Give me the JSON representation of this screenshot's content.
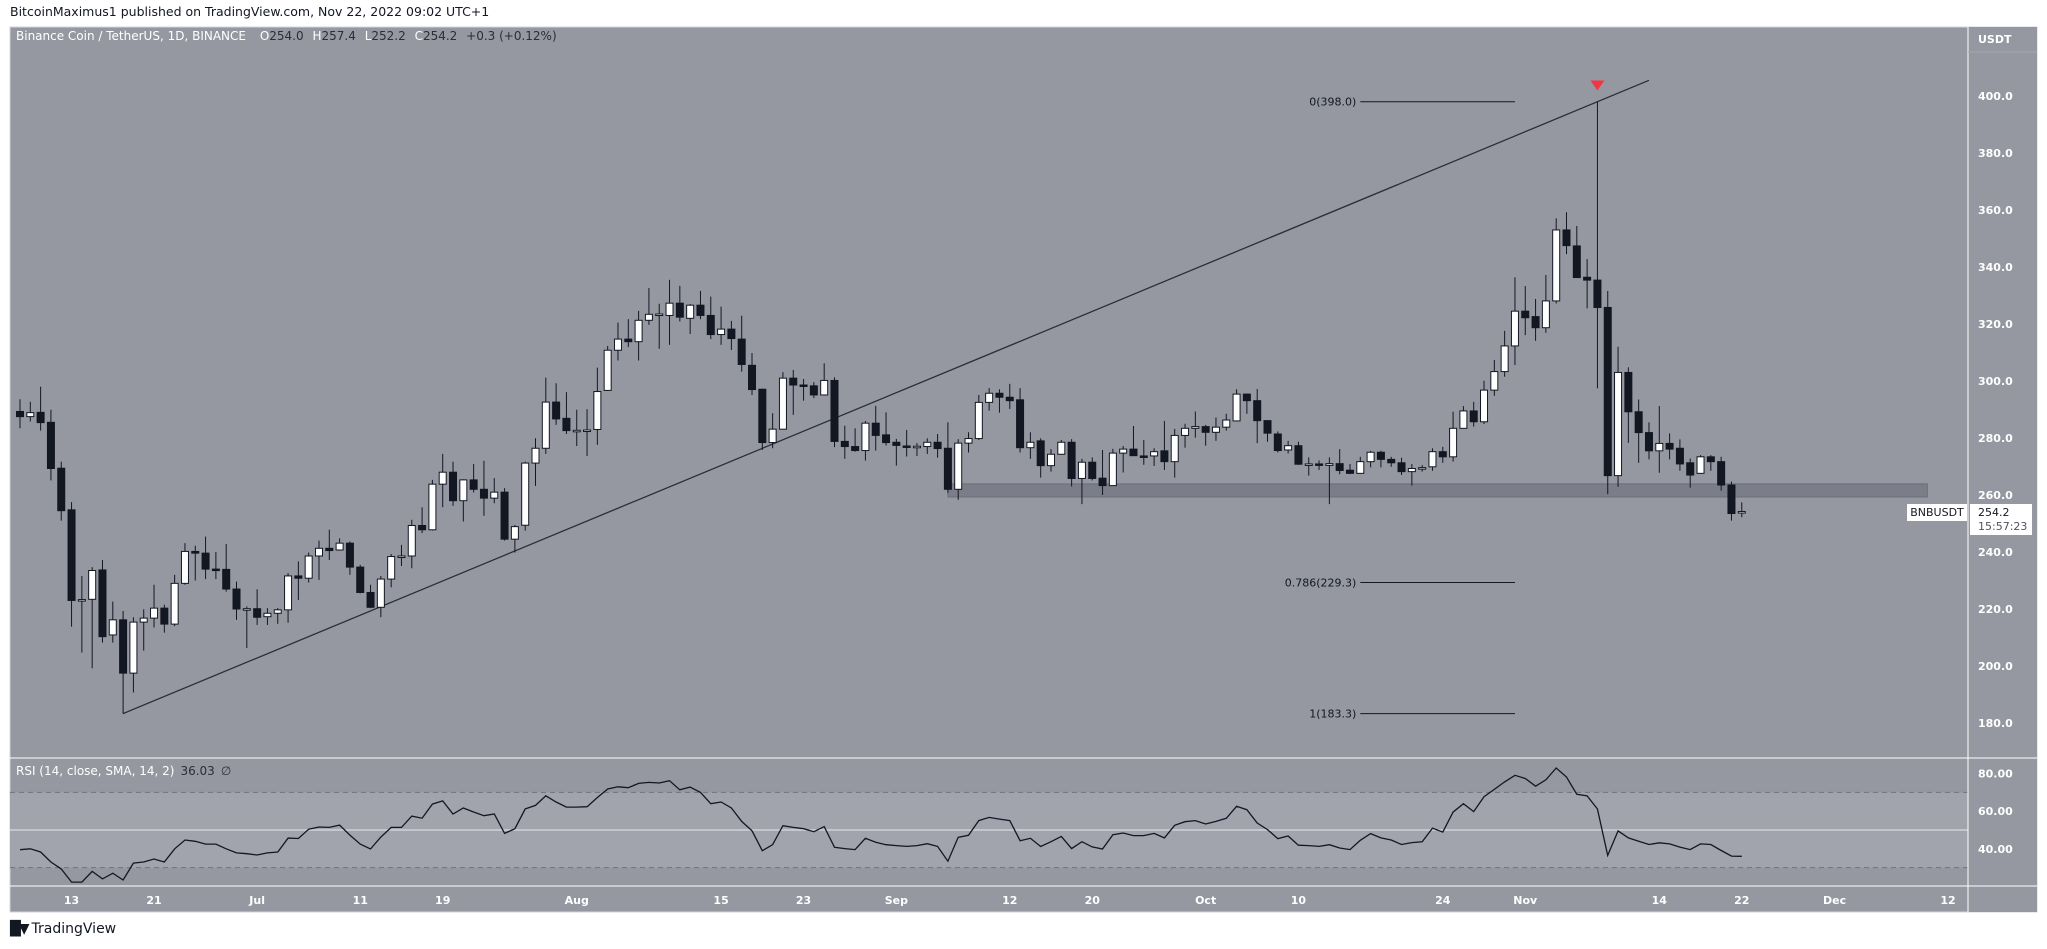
{
  "attribution": "BitcoinMaximus1 published on TradingView.com, Nov 22, 2022 09:02 UTC+1",
  "legend": {
    "symbol": "Binance Coin / TetherUS, 1D, BINANCE",
    "o_label": "O",
    "o": "254.0",
    "h_label": "H",
    "h": "257.4",
    "l_label": "L",
    "l": "252.2",
    "c_label": "C",
    "c": "254.2",
    "change": "+0.3 (+0.12%)"
  },
  "rsi_legend": {
    "label": "RSI (14, close, SMA, 14, 2)",
    "value": "36.03",
    "icon": "∅"
  },
  "price_axis_unit": "USDT",
  "symbol_tag": "BNBUSDT",
  "last_price": "254.2",
  "countdown": "15:57:23",
  "footer": {
    "logo": "17",
    "brand": "TradingView"
  },
  "colors": {
    "background": "#9598a1",
    "rsi_band": "#a1a4ac",
    "bear": "#131722",
    "bull": "#ffffff",
    "marker": "#f23645",
    "line": "#2a2e39"
  },
  "chart_data": {
    "type": "candlestick",
    "title": "Binance Coin / TetherUS, 1D, BINANCE",
    "start_date": "2022-06-08",
    "ylim": [
      170,
      415
    ],
    "y_ticks": [
      "180.0",
      "200.0",
      "220.0",
      "240.0",
      "260.0",
      "280.0",
      "300.0",
      "320.0",
      "340.0",
      "360.0",
      "380.0",
      "400.0"
    ],
    "x_ticks": [
      {
        "label": "13",
        "date": "2022-06-13"
      },
      {
        "label": "21",
        "date": "2022-06-21"
      },
      {
        "label": "Jul",
        "date": "2022-07-01"
      },
      {
        "label": "11",
        "date": "2022-07-11"
      },
      {
        "label": "19",
        "date": "2022-07-19"
      },
      {
        "label": "Aug",
        "date": "2022-08-01"
      },
      {
        "label": "15",
        "date": "2022-08-15"
      },
      {
        "label": "23",
        "date": "2022-08-23"
      },
      {
        "label": "Sep",
        "date": "2022-09-01"
      },
      {
        "label": "12",
        "date": "2022-09-12"
      },
      {
        "label": "20",
        "date": "2022-09-20"
      },
      {
        "label": "Oct",
        "date": "2022-10-01"
      },
      {
        "label": "10",
        "date": "2022-10-10"
      },
      {
        "label": "24",
        "date": "2022-10-24"
      },
      {
        "label": "Nov",
        "date": "2022-11-01"
      },
      {
        "label": "14",
        "date": "2022-11-14"
      },
      {
        "label": "22",
        "date": "2022-11-22"
      },
      {
        "label": "Dec",
        "date": "2022-12-01"
      },
      {
        "label": "12",
        "date": "2022-12-12"
      }
    ],
    "ohlc": [
      [
        289.3,
        293.6,
        283.4,
        287.5
      ],
      [
        287.5,
        292.7,
        285.8,
        288.9
      ],
      [
        289.0,
        298.0,
        282.6,
        285.4
      ],
      [
        285.5,
        289.9,
        265.1,
        269.3
      ],
      [
        269.4,
        271.7,
        251.0,
        254.5
      ],
      [
        254.8,
        257.5,
        213.8,
        223.0
      ],
      [
        223.2,
        231.6,
        204.7,
        223.3
      ],
      [
        223.4,
        234.7,
        199.2,
        233.5
      ],
      [
        233.7,
        237.2,
        208.2,
        210.3
      ],
      [
        210.9,
        222.6,
        208.2,
        216.2
      ],
      [
        216.2,
        219.3,
        183.3,
        197.5
      ],
      [
        197.5,
        217.1,
        190.7,
        215.4
      ],
      [
        215.4,
        219.9,
        205.4,
        216.8
      ],
      [
        216.8,
        228.5,
        213.5,
        220.3
      ],
      [
        220.3,
        221.5,
        211.7,
        214.7
      ],
      [
        214.7,
        232.0,
        214.0,
        229.0
      ],
      [
        229.0,
        243.1,
        228.5,
        240.2
      ],
      [
        240.2,
        242.2,
        230.0,
        239.6
      ],
      [
        239.6,
        245.4,
        230.5,
        234.0
      ],
      [
        234.0,
        240.0,
        230.5,
        233.9
      ],
      [
        233.9,
        242.8,
        226.1,
        227.0
      ],
      [
        227.0,
        229.6,
        216.2,
        220.0
      ],
      [
        220.0,
        220.9,
        206.3,
        220.1
      ],
      [
        220.1,
        226.9,
        214.4,
        217.1
      ],
      [
        217.3,
        220.3,
        214.4,
        218.5
      ],
      [
        218.5,
        220.3,
        214.8,
        219.7
      ],
      [
        219.7,
        232.6,
        215.2,
        231.6
      ],
      [
        231.6,
        236.7,
        223.2,
        230.8
      ],
      [
        230.8,
        239.8,
        229.3,
        238.6
      ],
      [
        238.6,
        244.0,
        230.2,
        241.3
      ],
      [
        241.3,
        247.8,
        237.2,
        240.5
      ],
      [
        240.7,
        244.8,
        240.5,
        243.1
      ],
      [
        243.1,
        243.7,
        232.0,
        234.7
      ],
      [
        234.7,
        235.5,
        225.5,
        225.8
      ],
      [
        225.8,
        228.5,
        220.3,
        220.6
      ],
      [
        220.6,
        231.6,
        217.1,
        230.5
      ],
      [
        230.5,
        239.3,
        227.6,
        238.4
      ],
      [
        238.4,
        242.5,
        235.1,
        238.6
      ],
      [
        238.6,
        251.3,
        234.3,
        249.3
      ],
      [
        249.3,
        255.7,
        246.6,
        247.8
      ],
      [
        247.8,
        265.3,
        247.5,
        263.8
      ],
      [
        263.8,
        274.4,
        255.7,
        268.0
      ],
      [
        268.0,
        271.7,
        256.2,
        258.0
      ],
      [
        258.0,
        265.5,
        250.7,
        265.3
      ],
      [
        265.3,
        270.9,
        260.9,
        262.0
      ],
      [
        262.0,
        272.0,
        252.7,
        258.9
      ],
      [
        258.9,
        265.9,
        257.1,
        261.0
      ],
      [
        261.0,
        262.4,
        244.0,
        244.5
      ],
      [
        244.5,
        249.5,
        239.8,
        248.9
      ],
      [
        249.4,
        271.7,
        247.5,
        271.2
      ],
      [
        271.2,
        279.9,
        263.2,
        276.4
      ],
      [
        276.4,
        301.2,
        274.4,
        292.6
      ],
      [
        292.6,
        299.2,
        284.6,
        286.7
      ],
      [
        286.9,
        296.1,
        281.4,
        282.6
      ],
      [
        282.6,
        289.9,
        277.2,
        282.7
      ],
      [
        282.7,
        290.1,
        273.7,
        282.8
      ],
      [
        283.0,
        304.7,
        277.6,
        296.3
      ],
      [
        296.7,
        312.3,
        296.5,
        310.8
      ],
      [
        310.8,
        320.5,
        307.2,
        314.7
      ],
      [
        314.7,
        321.7,
        311.9,
        313.8
      ],
      [
        313.8,
        324.6,
        307.2,
        321.3
      ],
      [
        321.3,
        332.6,
        319.7,
        323.4
      ],
      [
        323.4,
        327.1,
        311.3,
        323.5
      ],
      [
        323.0,
        335.5,
        312.7,
        327.3
      ],
      [
        327.3,
        333.4,
        320.9,
        322.4
      ],
      [
        322.0,
        327.0,
        316.5,
        326.6
      ],
      [
        326.6,
        331.6,
        321.7,
        323.0
      ],
      [
        323.0,
        329.6,
        314.7,
        316.3
      ],
      [
        316.3,
        326.1,
        312.7,
        318.2
      ],
      [
        318.2,
        321.1,
        310.9,
        314.9
      ],
      [
        314.7,
        322.9,
        303.3,
        305.8
      ],
      [
        305.5,
        309.8,
        295.1,
        297.0
      ],
      [
        297.1,
        297.3,
        275.8,
        278.4
      ],
      [
        278.4,
        288.7,
        276.4,
        283.1
      ],
      [
        283.1,
        303.1,
        283.0,
        301.0
      ],
      [
        301.0,
        303.9,
        288.1,
        298.6
      ],
      [
        298.6,
        300.7,
        293.1,
        298.1
      ],
      [
        298.3,
        299.6,
        294.0,
        295.1
      ],
      [
        295.1,
        306.2,
        295.0,
        300.2
      ],
      [
        300.2,
        301.3,
        276.8,
        278.8
      ],
      [
        278.8,
        284.3,
        272.7,
        277.0
      ],
      [
        277.0,
        283.4,
        275.2,
        275.6
      ],
      [
        275.6,
        286.0,
        272.1,
        285.2
      ],
      [
        285.2,
        291.3,
        275.6,
        280.9
      ],
      [
        281.1,
        289.0,
        277.4,
        278.4
      ],
      [
        278.5,
        279.7,
        270.3,
        277.4
      ],
      [
        277.2,
        282.8,
        273.5,
        277.0
      ],
      [
        277.0,
        278.2,
        273.7,
        277.1
      ],
      [
        277.0,
        279.9,
        274.4,
        278.5
      ],
      [
        278.5,
        281.4,
        273.1,
        276.3
      ],
      [
        276.4,
        285.5,
        260.8,
        262.0
      ],
      [
        262.0,
        279.6,
        258.3,
        278.2
      ],
      [
        278.2,
        282.0,
        274.9,
        279.8
      ],
      [
        279.8,
        295.1,
        279.3,
        292.5
      ],
      [
        292.5,
        297.5,
        289.6,
        295.7
      ],
      [
        295.7,
        297.1,
        288.9,
        294.3
      ],
      [
        294.3,
        299.0,
        290.2,
        293.1
      ],
      [
        293.4,
        297.5,
        274.9,
        276.6
      ],
      [
        276.6,
        282.0,
        272.7,
        278.5
      ],
      [
        279.0,
        279.9,
        266.1,
        270.3
      ],
      [
        270.3,
        276.1,
        268.2,
        274.3
      ],
      [
        274.3,
        279.3,
        274.1,
        278.5
      ],
      [
        278.5,
        279.6,
        263.0,
        265.8
      ],
      [
        265.8,
        272.7,
        256.8,
        271.5
      ],
      [
        271.5,
        273.2,
        265.1,
        265.8
      ],
      [
        265.9,
        275.8,
        260.0,
        263.3
      ],
      [
        263.3,
        276.2,
        263.2,
        274.7
      ],
      [
        274.7,
        277.2,
        267.9,
        276.1
      ],
      [
        276.1,
        284.2,
        273.8,
        273.8
      ],
      [
        273.7,
        279.3,
        270.6,
        273.6
      ],
      [
        273.7,
        276.4,
        270.2,
        275.2
      ],
      [
        275.5,
        286.0,
        268.8,
        271.7
      ],
      [
        271.7,
        283.2,
        266.1,
        280.9
      ],
      [
        280.9,
        285.0,
        276.6,
        283.4
      ],
      [
        283.4,
        289.3,
        280.1,
        284.0
      ],
      [
        284.0,
        284.6,
        277.3,
        282.0
      ],
      [
        282.0,
        287.2,
        279.0,
        283.8
      ],
      [
        283.8,
        288.5,
        282.6,
        286.3
      ],
      [
        286.0,
        297.1,
        285.8,
        295.4
      ],
      [
        295.4,
        295.5,
        288.5,
        293.1
      ],
      [
        293.1,
        297.2,
        278.2,
        286.1
      ],
      [
        286.1,
        286.2,
        278.7,
        281.7
      ],
      [
        281.4,
        282.3,
        274.9,
        275.6
      ],
      [
        275.8,
        279.0,
        274.6,
        277.3
      ],
      [
        277.3,
        278.7,
        270.6,
        270.8
      ],
      [
        270.8,
        273.2,
        266.8,
        270.9
      ],
      [
        270.9,
        272.1,
        268.8,
        270.6
      ],
      [
        270.4,
        273.2,
        256.8,
        271.0
      ],
      [
        271.0,
        276.1,
        267.3,
        268.6
      ],
      [
        268.7,
        270.9,
        267.3,
        267.6
      ],
      [
        267.6,
        273.4,
        267.5,
        271.7
      ],
      [
        271.7,
        275.5,
        269.7,
        275.0
      ],
      [
        275.0,
        275.5,
        269.7,
        272.5
      ],
      [
        272.5,
        273.4,
        269.9,
        271.3
      ],
      [
        271.3,
        273.1,
        267.0,
        268.2
      ],
      [
        268.2,
        270.9,
        263.3,
        269.3
      ],
      [
        269.3,
        270.5,
        268.2,
        269.6
      ],
      [
        269.9,
        276.4,
        268.5,
        275.2
      ],
      [
        275.2,
        276.9,
        271.3,
        273.4
      ],
      [
        273.4,
        289.2,
        271.7,
        283.4
      ],
      [
        283.4,
        291.2,
        283.3,
        289.5
      ],
      [
        289.5,
        292.7,
        284.0,
        285.7
      ],
      [
        285.7,
        300.1,
        284.9,
        296.8
      ],
      [
        296.8,
        307.4,
        294.8,
        303.3
      ],
      [
        303.3,
        317.6,
        301.5,
        312.3
      ],
      [
        312.3,
        336.4,
        305.6,
        324.5
      ],
      [
        324.5,
        333.3,
        316.1,
        322.2
      ],
      [
        322.6,
        328.8,
        314.1,
        318.7
      ],
      [
        318.7,
        337.2,
        316.9,
        328.1
      ],
      [
        328.1,
        357.1,
        327.2,
        353.0
      ],
      [
        353.0,
        359.2,
        344.5,
        347.5
      ],
      [
        347.4,
        354.4,
        336.2,
        336.3
      ],
      [
        336.4,
        342.8,
        325.5,
        335.4
      ],
      [
        335.4,
        398.0,
        297.4,
        325.8
      ],
      [
        325.8,
        331.6,
        260.3,
        266.8
      ],
      [
        266.8,
        312.0,
        262.9,
        303.0
      ],
      [
        303.0,
        304.8,
        278.3,
        289.2
      ],
      [
        289.2,
        293.5,
        271.3,
        281.9
      ],
      [
        281.9,
        285.5,
        272.5,
        275.5
      ],
      [
        275.5,
        291.2,
        267.8,
        278.1
      ],
      [
        278.1,
        281.6,
        272.5,
        276.1
      ],
      [
        276.4,
        279.5,
        268.5,
        270.9
      ],
      [
        271.3,
        272.8,
        262.6,
        267.0
      ],
      [
        267.6,
        274.0,
        267.5,
        273.4
      ],
      [
        273.4,
        274.0,
        268.5,
        271.7
      ],
      [
        271.7,
        273.4,
        261.5,
        263.5
      ],
      [
        263.5,
        264.7,
        251.0,
        253.5
      ],
      [
        254.0,
        257.4,
        252.2,
        254.2
      ]
    ],
    "trendline": {
      "from": {
        "date": "2022-06-18",
        "price": 183.3
      },
      "to": {
        "date": "2022-11-13",
        "price": 405.5
      }
    },
    "support_zone": {
      "from_date": "2022-09-06",
      "to_date": "2022-12-10",
      "low": 259.3,
      "high": 263.9
    },
    "fib_levels": [
      {
        "label": "0(398.0)",
        "price": 398.0
      },
      {
        "label": "0.786(229.3)",
        "price": 229.3
      },
      {
        "label": "1(183.3)",
        "price": 183.3
      }
    ],
    "fib_range": {
      "from_date": "2022-10-16",
      "to_date": "2022-10-31"
    },
    "top_marker": {
      "date": "2022-11-08",
      "price": 403,
      "shape": "triangle-down"
    },
    "rsi": {
      "ylim": [
        16,
        88
      ],
      "bands": [
        30,
        50,
        70
      ],
      "y_ticks": [
        "40.00",
        "60.00",
        "80.00"
      ],
      "values": [
        39.5,
        40,
        38.3,
        33,
        29.3,
        22.3,
        22.3,
        28,
        24,
        27,
        23.4,
        32.4,
        33,
        34.6,
        33,
        40,
        44.7,
        44,
        42.5,
        42.5,
        40,
        37.8,
        37.4,
        36.7,
        37.8,
        38.3,
        45.7,
        45.5,
        50.4,
        51.6,
        51.4,
        52.6,
        47.3,
        42.5,
        39.9,
        46.3,
        51.4,
        51.4,
        57.4,
        56.3,
        63.8,
        65.5,
        58.5,
        61.7,
        59.6,
        57.6,
        58.5,
        48.2,
        50.7,
        61.2,
        63.1,
        68.2,
        64.9,
        62.2,
        62.2,
        62.4,
        67.3,
        71.8,
        73,
        72.5,
        74.8,
        75.3,
        75,
        76.2,
        71.4,
        72.8,
        70,
        64,
        64.9,
        61.7,
        54.6,
        49.6,
        39,
        42.2,
        52.3,
        51.4,
        50.7,
        49.1,
        51.8,
        40.8,
        40.1,
        39.6,
        45.6,
        43.5,
        42.2,
        41.7,
        41.3,
        41.7,
        42.7,
        41.3,
        33.4,
        46.1,
        47.2,
        55,
        56.7,
        55.8,
        55,
        44.3,
        45.6,
        41.2,
        43.8,
        46.6,
        40.1,
        43.8,
        41,
        39.9,
        47.5,
        48.4,
        47,
        47,
        48.2,
        45.8,
        52.5,
        54.4,
        55,
        53.2,
        54.6,
        56.2,
        62.6,
        60.8,
        53.7,
        50.2,
        45.4,
        46.8,
        41.9,
        41.7,
        41.3,
        42.2,
        40.4,
        39.6,
        44.5,
        48.1,
        45.8,
        44.7,
        42.3,
        43.3,
        43.7,
        51,
        48.9,
        59.5,
        64,
        59.8,
        67.7,
        71.6,
        75.6,
        79.1,
        77.4,
        73.3,
        76.7,
        83,
        78.2,
        69,
        68.2,
        61.2,
        36.5,
        49.5,
        45.8,
        44,
        42.3,
        43.2,
        42.6,
        40.9,
        39.6,
        42.6,
        42.3,
        39.1,
        36.1,
        36.03
      ]
    }
  }
}
